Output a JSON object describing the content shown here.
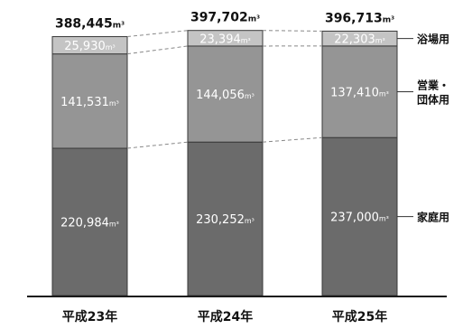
{
  "chart_data": {
    "type": "bar",
    "stacked": true,
    "categories": [
      "平成23年",
      "平成24年",
      "平成25年"
    ],
    "unit": "m³",
    "series": [
      {
        "name": "家庭用",
        "values": [
          220984,
          230252,
          237000
        ],
        "color": "#6b6b6b"
      },
      {
        "name": "営業・団体用",
        "values": [
          141531,
          144056,
          137410
        ],
        "color": "#959595"
      },
      {
        "name": "浴場用",
        "values": [
          25930,
          23394,
          22303
        ],
        "color": "#c4c4c4"
      }
    ],
    "totals": [
      388445,
      397702,
      396713
    ],
    "value_labels": [
      [
        "220,984",
        "230,252",
        "237,000"
      ],
      [
        "141,531",
        "144,056",
        "137,410"
      ],
      [
        "25,930",
        "23,394",
        "22,303"
      ]
    ],
    "total_labels": [
      "388,445",
      "397,702",
      "396,713"
    ],
    "unit_label": "m³",
    "legend": [
      {
        "lines": [
          "浴場用"
        ]
      },
      {
        "lines": [
          "営業・",
          "団体用"
        ]
      },
      {
        "lines": [
          "家庭用"
        ]
      }
    ],
    "legend_placement": "right",
    "colors": {
      "bar_outline": "#3a3a3a",
      "text_on_bar": "#ffffff",
      "text": "#111111",
      "connector": "#888888"
    }
  }
}
